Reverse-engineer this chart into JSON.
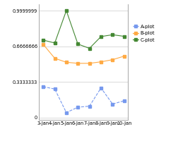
{
  "x_labels": [
    "3-Jan",
    "4-Jan",
    "5-Jan",
    "6-Jan",
    "7-Jan",
    "8-Jan",
    "9-Jan",
    "10-Jan"
  ],
  "A_values": [
    0.29,
    0.268,
    0.048,
    0.098,
    0.108,
    0.278,
    0.128,
    0.158
  ],
  "B_values": [
    0.685,
    0.555,
    0.518,
    0.508,
    0.508,
    0.522,
    0.542,
    0.575
  ],
  "C_values": [
    0.725,
    0.698,
    0.9999999,
    0.688,
    0.648,
    0.758,
    0.775,
    0.76
  ],
  "A_color": "#7799ee",
  "B_color": "#ffaa44",
  "C_color": "#448833",
  "background": "#ffffff",
  "ylim": [
    -0.02,
    1.06
  ],
  "yticks": [
    0,
    0.3333333,
    0.6666666,
    0.9999999
  ],
  "ytick_labels": [
    "0",
    "0.3333333",
    "0.6666666",
    "0.9999999"
  ],
  "legend_labels": [
    "A-plot",
    "B-plot",
    "C-plot"
  ]
}
